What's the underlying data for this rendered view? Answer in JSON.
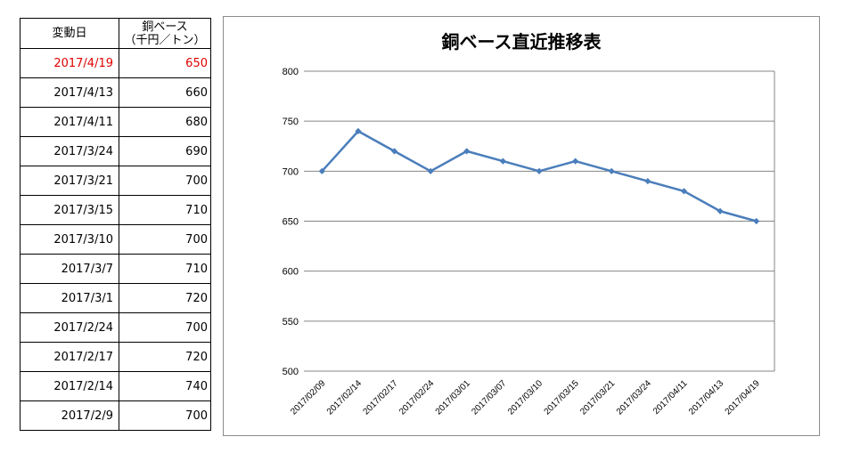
{
  "table": {
    "header_date": "変動日",
    "header_value_line1": "銅ベース",
    "header_value_line2": "（千円／トン）",
    "highlight_color": "#e00000",
    "rows": [
      {
        "date": "2017/4/19",
        "value": "650"
      },
      {
        "date": "2017/4/13",
        "value": "660"
      },
      {
        "date": "2017/4/11",
        "value": "680"
      },
      {
        "date": "2017/3/24",
        "value": "690"
      },
      {
        "date": "2017/3/21",
        "value": "700"
      },
      {
        "date": "2017/3/15",
        "value": "710"
      },
      {
        "date": "2017/3/10",
        "value": "700"
      },
      {
        "date": "2017/3/7",
        "value": "710"
      },
      {
        "date": "2017/3/1",
        "value": "720"
      },
      {
        "date": "2017/2/24",
        "value": "700"
      },
      {
        "date": "2017/2/17",
        "value": "720"
      },
      {
        "date": "2017/2/14",
        "value": "740"
      },
      {
        "date": "2017/2/9",
        "value": "700"
      }
    ]
  },
  "chart_data": {
    "type": "line",
    "title": "銅ベース直近推移表",
    "xlabel": "",
    "ylabel": "",
    "categories": [
      "2017/02/09",
      "2017/02/14",
      "2017/02/17",
      "2017/02/24",
      "2017/03/01",
      "2017/03/07",
      "2017/03/10",
      "2017/03/15",
      "2017/03/21",
      "2017/03/24",
      "2017/04/11",
      "2017/04/13",
      "2017/04/19"
    ],
    "series": [
      {
        "values": [
          700,
          740,
          720,
          700,
          720,
          710,
          700,
          710,
          700,
          690,
          680,
          660,
          650
        ]
      }
    ],
    "ylim": [
      500,
      800
    ],
    "yticks": [
      500,
      550,
      600,
      650,
      700,
      750,
      800
    ],
    "grid": true,
    "legend": "none",
    "line_color": "#4a7ebb",
    "grid_color": "#868686"
  }
}
